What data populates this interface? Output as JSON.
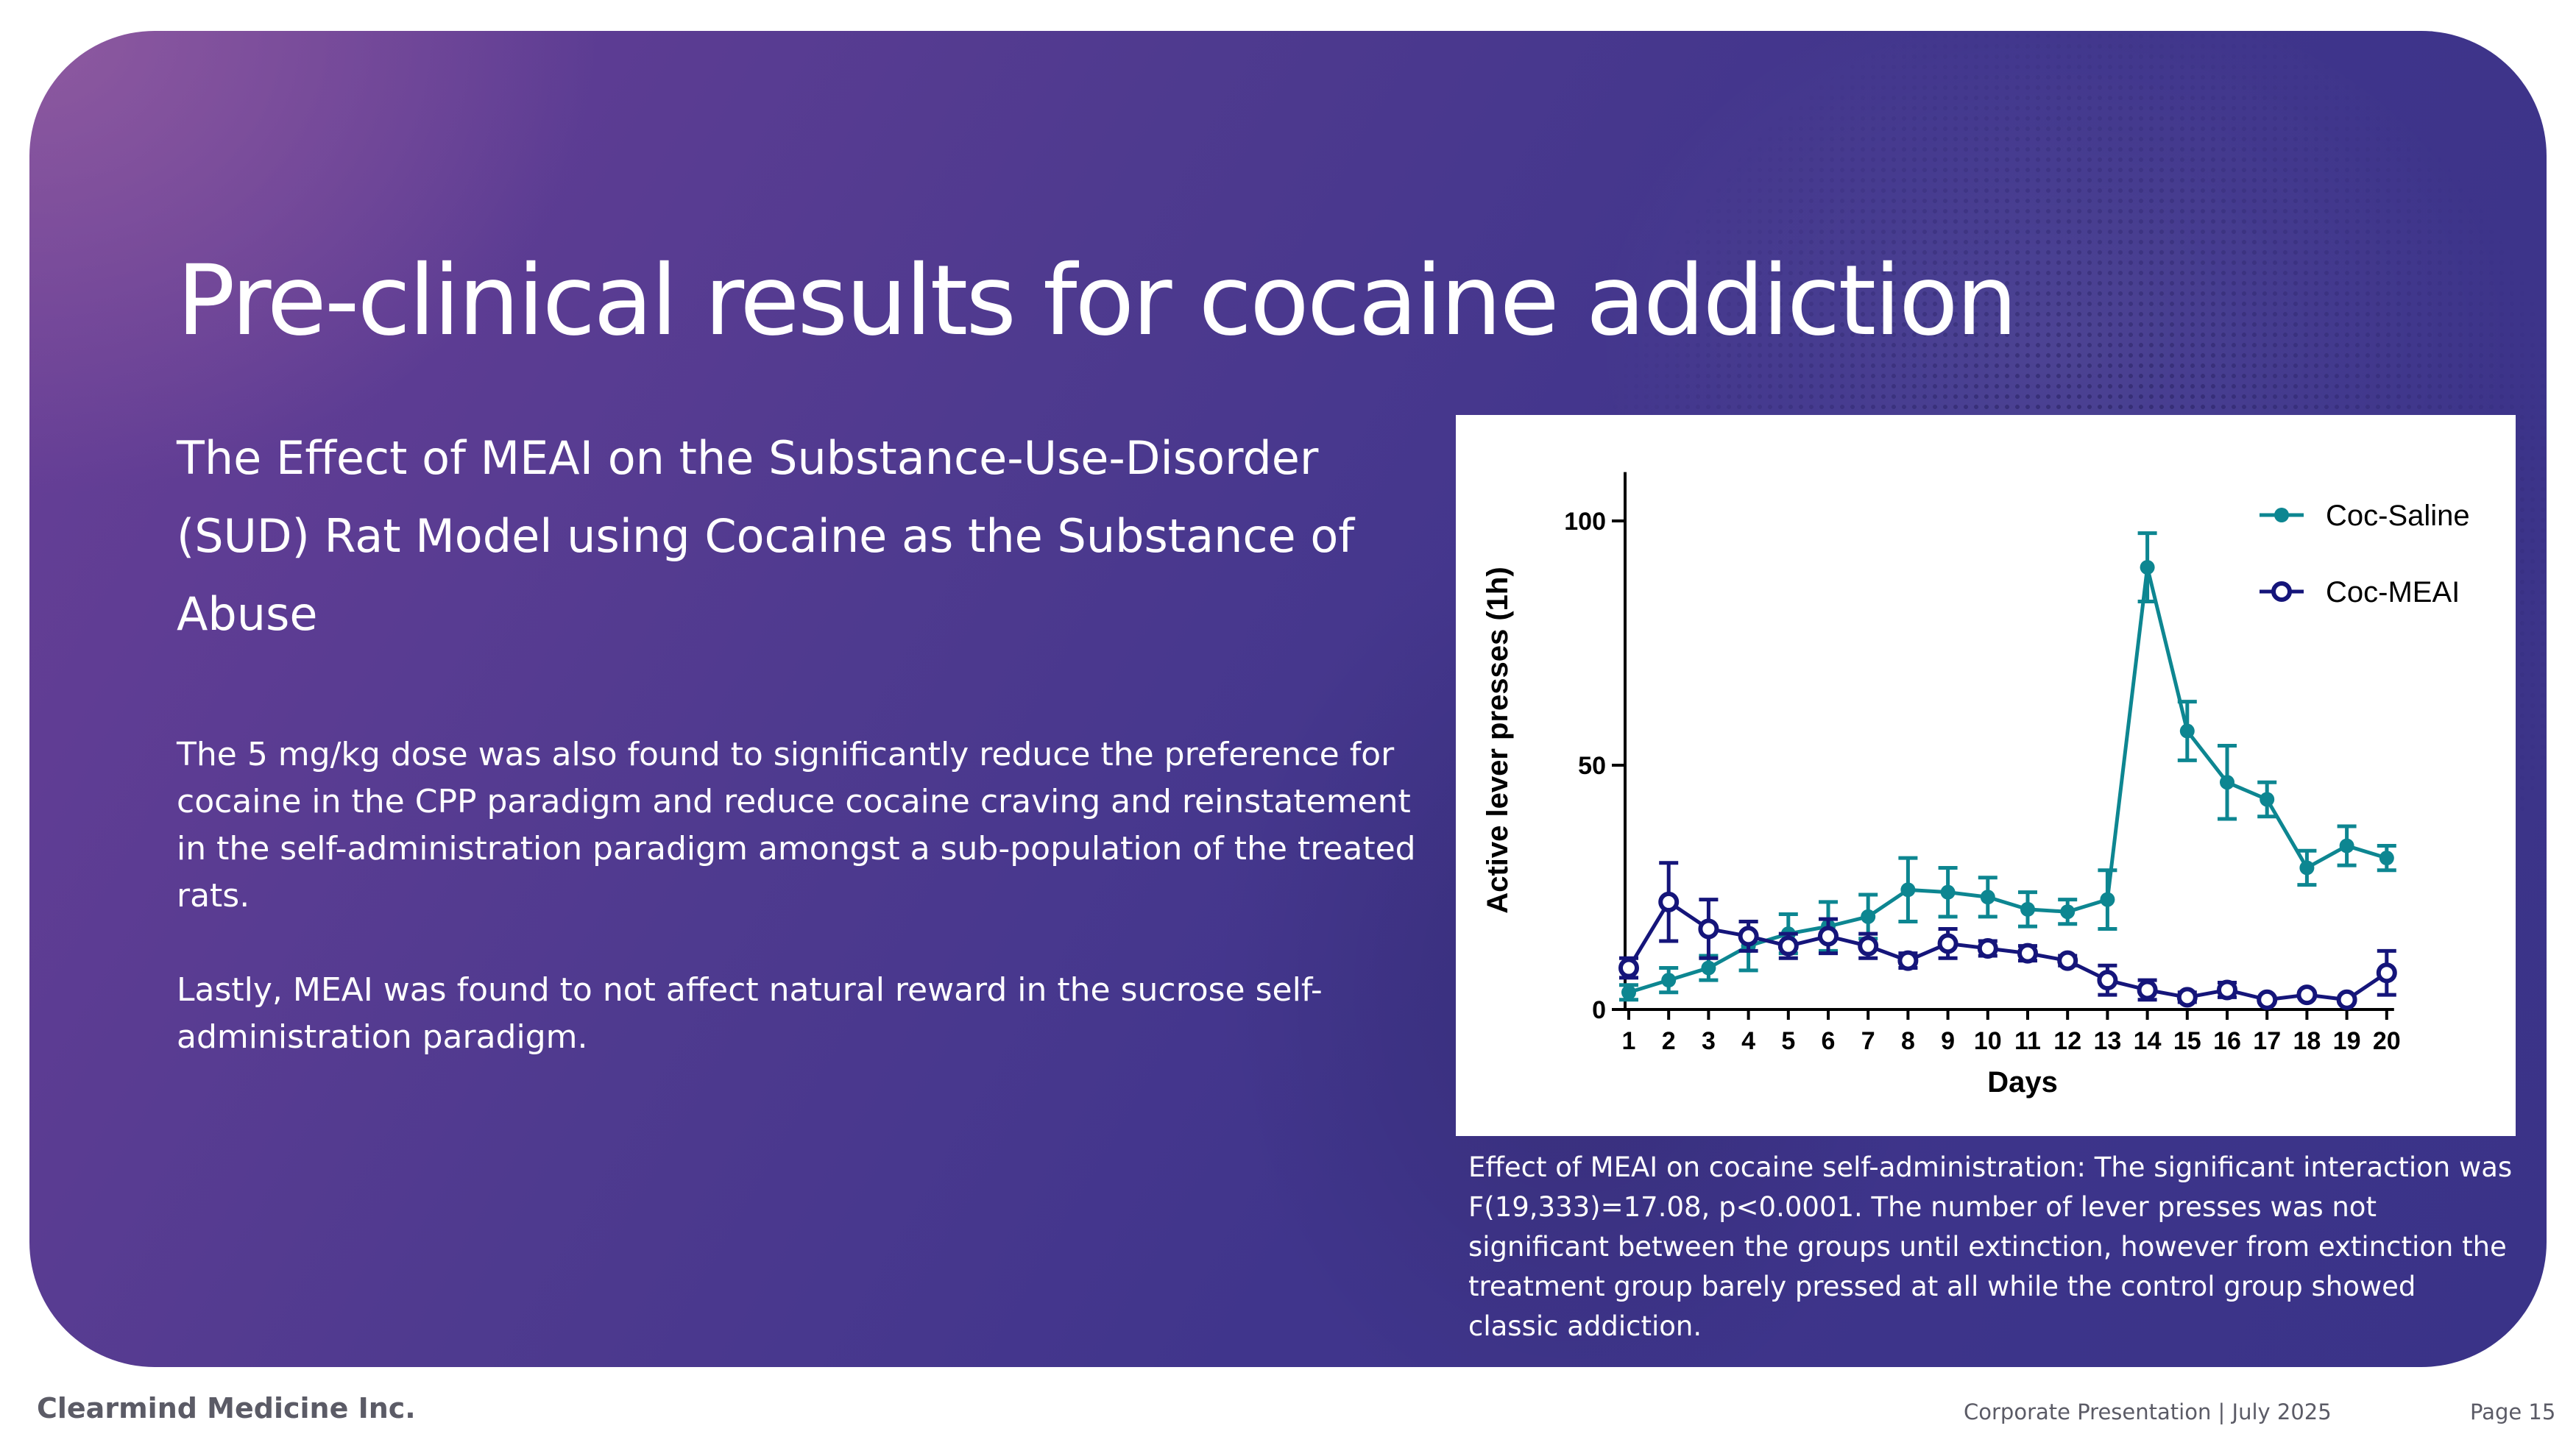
{
  "slide": {
    "title": "Pre-clinical results for cocaine addiction",
    "subtitle": "The Effect of MEAI on the Substance-Use-Disorder (SUD) Rat Model using Cocaine as the Substance of Abuse",
    "paragraphs": [
      "The 5 mg/kg dose was also found to significantly reduce the preference for cocaine in the CPP paradigm and reduce cocaine craving and reinstatement in the self-administration paradigm amongst a sub-population of the treated rats.",
      "Lastly, MEAI was found to not affect natural reward in the sucrose self-administration paradigm."
    ],
    "caption": "Effect of MEAI on cocaine self-administration: The significant interaction was F(19,333)=17.08, p<0.0001. The number of lever presses was not significant between the groups until extinction, however from extinction the treatment group barely pressed at all while the control group showed classic addiction."
  },
  "footer": {
    "company": "Clearmind Medicine Inc.",
    "presentation": "Corporate Presentation  |  July 2025",
    "page": "Page 15"
  },
  "colors": {
    "saline": "#0d8691",
    "meai": "#15157a",
    "axis": "#000000"
  },
  "chart_data": {
    "type": "line",
    "title": "",
    "xlabel": "Days",
    "ylabel": "Active lever presses (1h)",
    "ylim": [
      0,
      110
    ],
    "yticks": [
      0,
      50,
      100
    ],
    "x": [
      1,
      2,
      3,
      4,
      5,
      6,
      7,
      8,
      9,
      10,
      11,
      12,
      13,
      14,
      15,
      16,
      17,
      18,
      19,
      20
    ],
    "legend_position": "top-right",
    "series": [
      {
        "name": "Coc-Saline",
        "marker": "filled-circle",
        "values": [
          3.5,
          6,
          8.5,
          13,
          15.5,
          17,
          19,
          24.5,
          24,
          23,
          20.5,
          20,
          22.5,
          90.5,
          57,
          46.5,
          43,
          29,
          33.5,
          31
        ],
        "errors": [
          1.5,
          2.5,
          2.5,
          5,
          4,
          5,
          4.5,
          6.5,
          5,
          4,
          3.5,
          2.5,
          6,
          7,
          6,
          7.5,
          3.5,
          3.5,
          4,
          2.5
        ]
      },
      {
        "name": "Coc-MEAI",
        "marker": "open-circle",
        "values": [
          8.5,
          22,
          16.5,
          15,
          13,
          15,
          13,
          10,
          13.5,
          12.5,
          11.5,
          10,
          6,
          4,
          2.5,
          4,
          2,
          3,
          2,
          7.5
        ],
        "errors": [
          2,
          8,
          6,
          3,
          2.5,
          3.5,
          2.5,
          1.5,
          3,
          1.5,
          1.5,
          1,
          3,
          2,
          1,
          1.5,
          0.5,
          0.5,
          0.5,
          4.5
        ]
      }
    ]
  }
}
